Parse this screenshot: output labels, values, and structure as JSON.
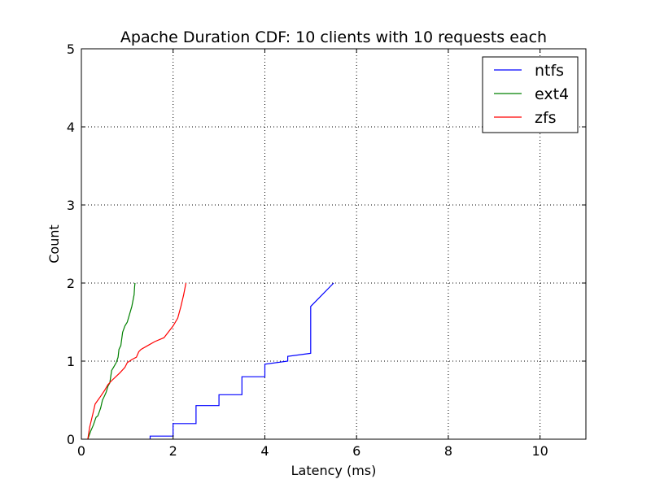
{
  "chart_data": {
    "type": "line",
    "title": "Apache Duration CDF: 10 clients with 10 requests each",
    "xlabel": "Latency (ms)",
    "ylabel": "Count",
    "xlim": [
      0,
      11
    ],
    "ylim": [
      0,
      5
    ],
    "xticks": [
      0,
      2,
      4,
      6,
      8,
      10
    ],
    "yticks": [
      0,
      1,
      2,
      3,
      4,
      5
    ],
    "grid": true,
    "legend_position": "top-right",
    "series": [
      {
        "name": "ntfs",
        "color": "#0000ff",
        "x": [
          1.5,
          1.5,
          2.0,
          2.0,
          2.5,
          2.5,
          3.0,
          3.0,
          3.5,
          3.5,
          4.0,
          4.0,
          4.5,
          4.5,
          5.0,
          5.0,
          5.5
        ],
        "y": [
          0.0,
          0.04,
          0.04,
          0.2,
          0.2,
          0.43,
          0.43,
          0.57,
          0.57,
          0.8,
          0.8,
          0.96,
          1.0,
          1.06,
          1.1,
          1.7,
          2.0
        ]
      },
      {
        "name": "ext4",
        "color": "#008000",
        "x": [
          0.14,
          0.2,
          0.26,
          0.32,
          0.36,
          0.42,
          0.46,
          0.5,
          0.54,
          0.58,
          0.62,
          0.66,
          0.7,
          0.76,
          0.8,
          0.82,
          0.86,
          0.9,
          0.95,
          1.0,
          1.05,
          1.1,
          1.15,
          1.16,
          1.17
        ],
        "y": [
          0.0,
          0.1,
          0.18,
          0.28,
          0.3,
          0.4,
          0.5,
          0.55,
          0.6,
          0.68,
          0.72,
          0.88,
          0.92,
          0.98,
          1.05,
          1.15,
          1.2,
          1.37,
          1.45,
          1.5,
          1.6,
          1.7,
          1.85,
          1.95,
          2.0
        ]
      },
      {
        "name": "zfs",
        "color": "#ff0000",
        "x": [
          0.14,
          0.18,
          0.22,
          0.26,
          0.3,
          0.36,
          0.42,
          0.5,
          0.58,
          0.66,
          0.75,
          0.84,
          0.95,
          1.0,
          1.1,
          1.2,
          1.25,
          1.3,
          1.45,
          1.6,
          1.8,
          2.0,
          2.1,
          2.17,
          2.23,
          2.28
        ],
        "y": [
          0.0,
          0.15,
          0.25,
          0.35,
          0.45,
          0.5,
          0.55,
          0.62,
          0.7,
          0.75,
          0.8,
          0.85,
          0.92,
          0.98,
          1.02,
          1.05,
          1.12,
          1.15,
          1.2,
          1.25,
          1.3,
          1.45,
          1.55,
          1.7,
          1.85,
          2.0
        ]
      }
    ]
  }
}
